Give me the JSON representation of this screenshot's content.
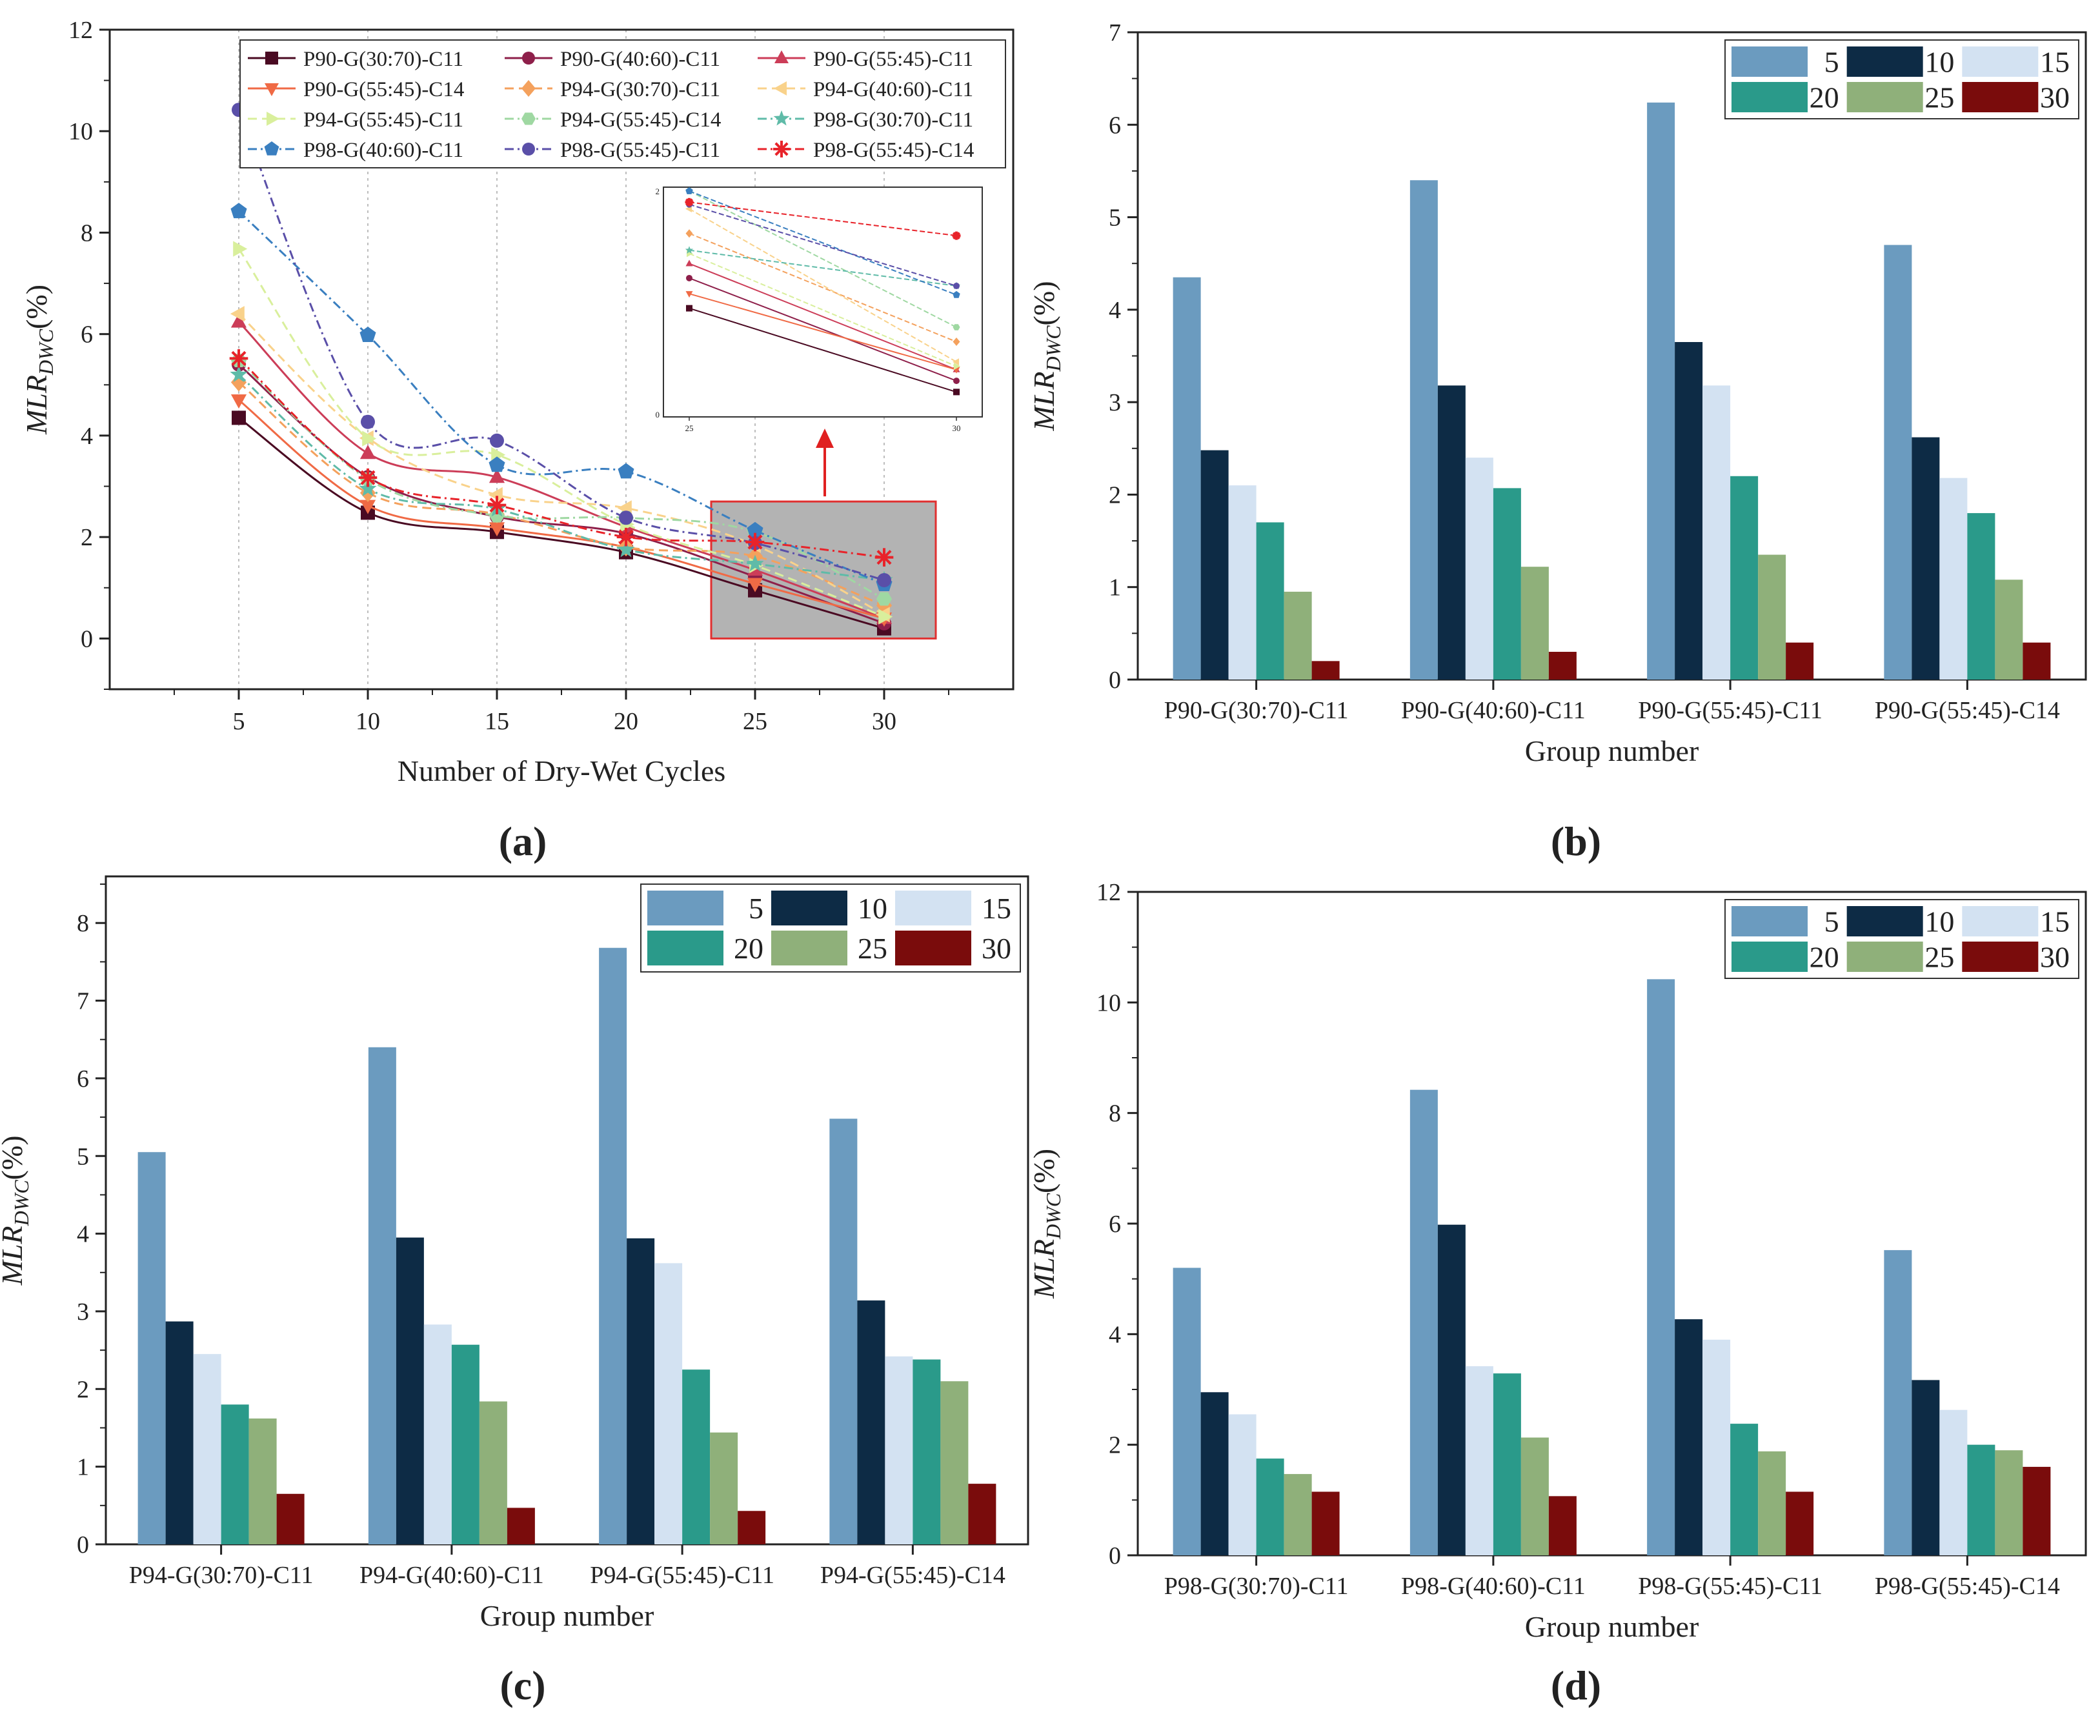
{
  "chart_data": [
    {
      "type": "line",
      "panel_label": "(a)",
      "title": "",
      "xlabel": "Number of Dry-Wet Cycles",
      "ylabel_main": "MLR",
      "ylabel_sub": "DWC",
      "ylabel_unit": "(%)",
      "x": [
        5,
        10,
        15,
        20,
        25,
        30
      ],
      "xlim": [
        0,
        35
      ],
      "ylim": [
        -1,
        12
      ],
      "xticks": [
        5,
        10,
        15,
        20,
        25,
        30
      ],
      "yticks": [
        0,
        2,
        4,
        6,
        8,
        10,
        12
      ],
      "grid": "vertical dotted",
      "legend_position": "top-right",
      "series": [
        {
          "name": "P90-G(30:70)-C11",
          "color": "#4a0a22",
          "marker": "square",
          "dash": "solid",
          "values": [
            4.35,
            2.48,
            2.1,
            1.7,
            0.95,
            0.2
          ]
        },
        {
          "name": "P90-G(40:60)-C11",
          "color": "#8e1f4a",
          "marker": "circle",
          "dash": "solid",
          "values": [
            5.4,
            3.18,
            2.4,
            2.07,
            1.22,
            0.3
          ]
        },
        {
          "name": "P90-G(55:45)-C11",
          "color": "#cc3d58",
          "marker": "triangle-up",
          "dash": "solid",
          "values": [
            6.24,
            3.65,
            3.18,
            2.2,
            1.35,
            0.4
          ]
        },
        {
          "name": "P90-G(55:45)-C14",
          "color": "#f06a45",
          "marker": "triangle-down",
          "dash": "solid",
          "values": [
            4.7,
            2.62,
            2.18,
            1.8,
            1.08,
            0.4
          ]
        },
        {
          "name": "P94-G(30:70)-C11",
          "color": "#f4a15d",
          "marker": "diamond",
          "dash": "dashed",
          "values": [
            5.05,
            2.87,
            2.45,
            1.8,
            1.62,
            0.65
          ]
        },
        {
          "name": "P94-G(40:60)-C11",
          "color": "#f9d28b",
          "marker": "triangle-left",
          "dash": "dashed",
          "values": [
            6.4,
            3.95,
            2.83,
            2.57,
            1.84,
            0.47
          ]
        },
        {
          "name": "P94-G(55:45)-C11",
          "color": "#d9ef9c",
          "marker": "triangle-right",
          "dash": "dashed",
          "values": [
            7.68,
            3.94,
            3.62,
            2.25,
            1.44,
            0.43
          ]
        },
        {
          "name": "P94-G(55:45)-C14",
          "color": "#9fd8a2",
          "marker": "hexagon",
          "dash": "dashdot",
          "values": [
            5.48,
            3.14,
            2.42,
            2.38,
            2.1,
            0.78
          ]
        },
        {
          "name": "P98-G(30:70)-C11",
          "color": "#5fbba8",
          "marker": "star",
          "dash": "dashdot",
          "values": [
            5.2,
            2.95,
            2.55,
            1.75,
            1.47,
            1.15
          ]
        },
        {
          "name": "P98-G(40:60)-C11",
          "color": "#3a7fc0",
          "marker": "pentagon",
          "dash": "dashdot",
          "values": [
            8.42,
            5.98,
            3.42,
            3.29,
            2.13,
            1.07
          ]
        },
        {
          "name": "P98-G(55:45)-C11",
          "color": "#5a4fa8",
          "marker": "circle",
          "dash": "dashdot",
          "values": [
            10.42,
            4.27,
            3.9,
            2.38,
            1.88,
            1.15
          ]
        },
        {
          "name": "P98-G(55:45)-C14",
          "color": "#e8232a",
          "marker": "asterisk",
          "dash": "dashdot",
          "values": [
            5.52,
            3.17,
            2.63,
            2.0,
            1.9,
            1.6
          ]
        }
      ],
      "inset": {
        "x": [
          25,
          30
        ],
        "xtick_labels": [
          "25",
          "30"
        ],
        "ytick_labels": [
          "0",
          "2"
        ],
        "annotation": "zoomed view of cycles 25–30"
      }
    },
    {
      "type": "bar",
      "panel_label": "(b)",
      "title": "",
      "xlabel": "Group number",
      "ylabel_main": "MLR",
      "ylabel_sub": "DWC",
      "ylabel_unit": "(%)",
      "ylim": [
        0,
        7
      ],
      "yticks": [
        0,
        1,
        2,
        3,
        4,
        5,
        6,
        7
      ],
      "legend_position": "top-right",
      "categories": [
        "P90-G(30:70)-C11",
        "P90-G(40:60)-C11",
        "P90-G(55:45)-C11",
        "P90-G(55:45)-C14"
      ],
      "series": [
        {
          "name": "5",
          "color": "#6b9bbf",
          "values": [
            4.35,
            5.4,
            6.24,
            4.7
          ]
        },
        {
          "name": "10",
          "color": "#0d2b45",
          "values": [
            2.48,
            3.18,
            3.65,
            2.62
          ]
        },
        {
          "name": "15",
          "color": "#d3e2f2",
          "values": [
            2.1,
            2.4,
            3.18,
            2.18
          ]
        },
        {
          "name": "20",
          "color": "#2a9a8a",
          "values": [
            1.7,
            2.07,
            2.2,
            1.8
          ]
        },
        {
          "name": "25",
          "color": "#8fb07a",
          "values": [
            0.95,
            1.22,
            1.35,
            1.08
          ]
        },
        {
          "name": "30",
          "color": "#7a0c0c",
          "values": [
            0.2,
            0.3,
            0.4,
            0.4
          ]
        }
      ]
    },
    {
      "type": "bar",
      "panel_label": "(c)",
      "title": "",
      "xlabel": "Group number",
      "ylabel_main": "MLR",
      "ylabel_sub": "DWC",
      "ylabel_unit": "(%)",
      "ylim": [
        0,
        8.6
      ],
      "yticks": [
        0,
        1,
        2,
        3,
        4,
        5,
        6,
        7,
        8
      ],
      "legend_position": "top-right",
      "categories": [
        "P94-G(30:70)-C11",
        "P94-G(40:60)-C11",
        "P94-G(55:45)-C11",
        "P94-G(55:45)-C14"
      ],
      "series": [
        {
          "name": "5",
          "color": "#6b9bbf",
          "values": [
            5.05,
            6.4,
            7.68,
            5.48
          ]
        },
        {
          "name": "10",
          "color": "#0d2b45",
          "values": [
            2.87,
            3.95,
            3.94,
            3.14
          ]
        },
        {
          "name": "15",
          "color": "#d3e2f2",
          "values": [
            2.45,
            2.83,
            3.62,
            2.42
          ]
        },
        {
          "name": "20",
          "color": "#2a9a8a",
          "values": [
            1.8,
            2.57,
            2.25,
            2.38
          ]
        },
        {
          "name": "25",
          "color": "#8fb07a",
          "values": [
            1.62,
            1.84,
            1.44,
            2.1
          ]
        },
        {
          "name": "30",
          "color": "#7a0c0c",
          "values": [
            0.65,
            0.47,
            0.43,
            0.78
          ]
        }
      ]
    },
    {
      "type": "bar",
      "panel_label": "(d)",
      "title": "",
      "xlabel": "Group number",
      "ylabel_main": "MLR",
      "ylabel_sub": "DWC",
      "ylabel_unit": "(%)",
      "ylim": [
        0,
        12
      ],
      "yticks": [
        0,
        2,
        4,
        6,
        8,
        10,
        12
      ],
      "legend_position": "top-right",
      "categories": [
        "P98-G(30:70)-C11",
        "P98-G(40:60)-C11",
        "P98-G(55:45)-C11",
        "P98-G(55:45)-C14"
      ],
      "series": [
        {
          "name": "5",
          "color": "#6b9bbf",
          "values": [
            5.2,
            8.42,
            10.42,
            5.52
          ]
        },
        {
          "name": "10",
          "color": "#0d2b45",
          "values": [
            2.95,
            5.98,
            4.27,
            3.17
          ]
        },
        {
          "name": "15",
          "color": "#d3e2f2",
          "values": [
            2.55,
            3.42,
            3.9,
            2.63
          ]
        },
        {
          "name": "20",
          "color": "#2a9a8a",
          "values": [
            1.75,
            3.29,
            2.38,
            2.0
          ]
        },
        {
          "name": "25",
          "color": "#8fb07a",
          "values": [
            1.47,
            2.13,
            1.88,
            1.9
          ]
        },
        {
          "name": "30",
          "color": "#7a0c0c",
          "values": [
            1.15,
            1.07,
            1.15,
            1.6
          ]
        }
      ]
    }
  ]
}
